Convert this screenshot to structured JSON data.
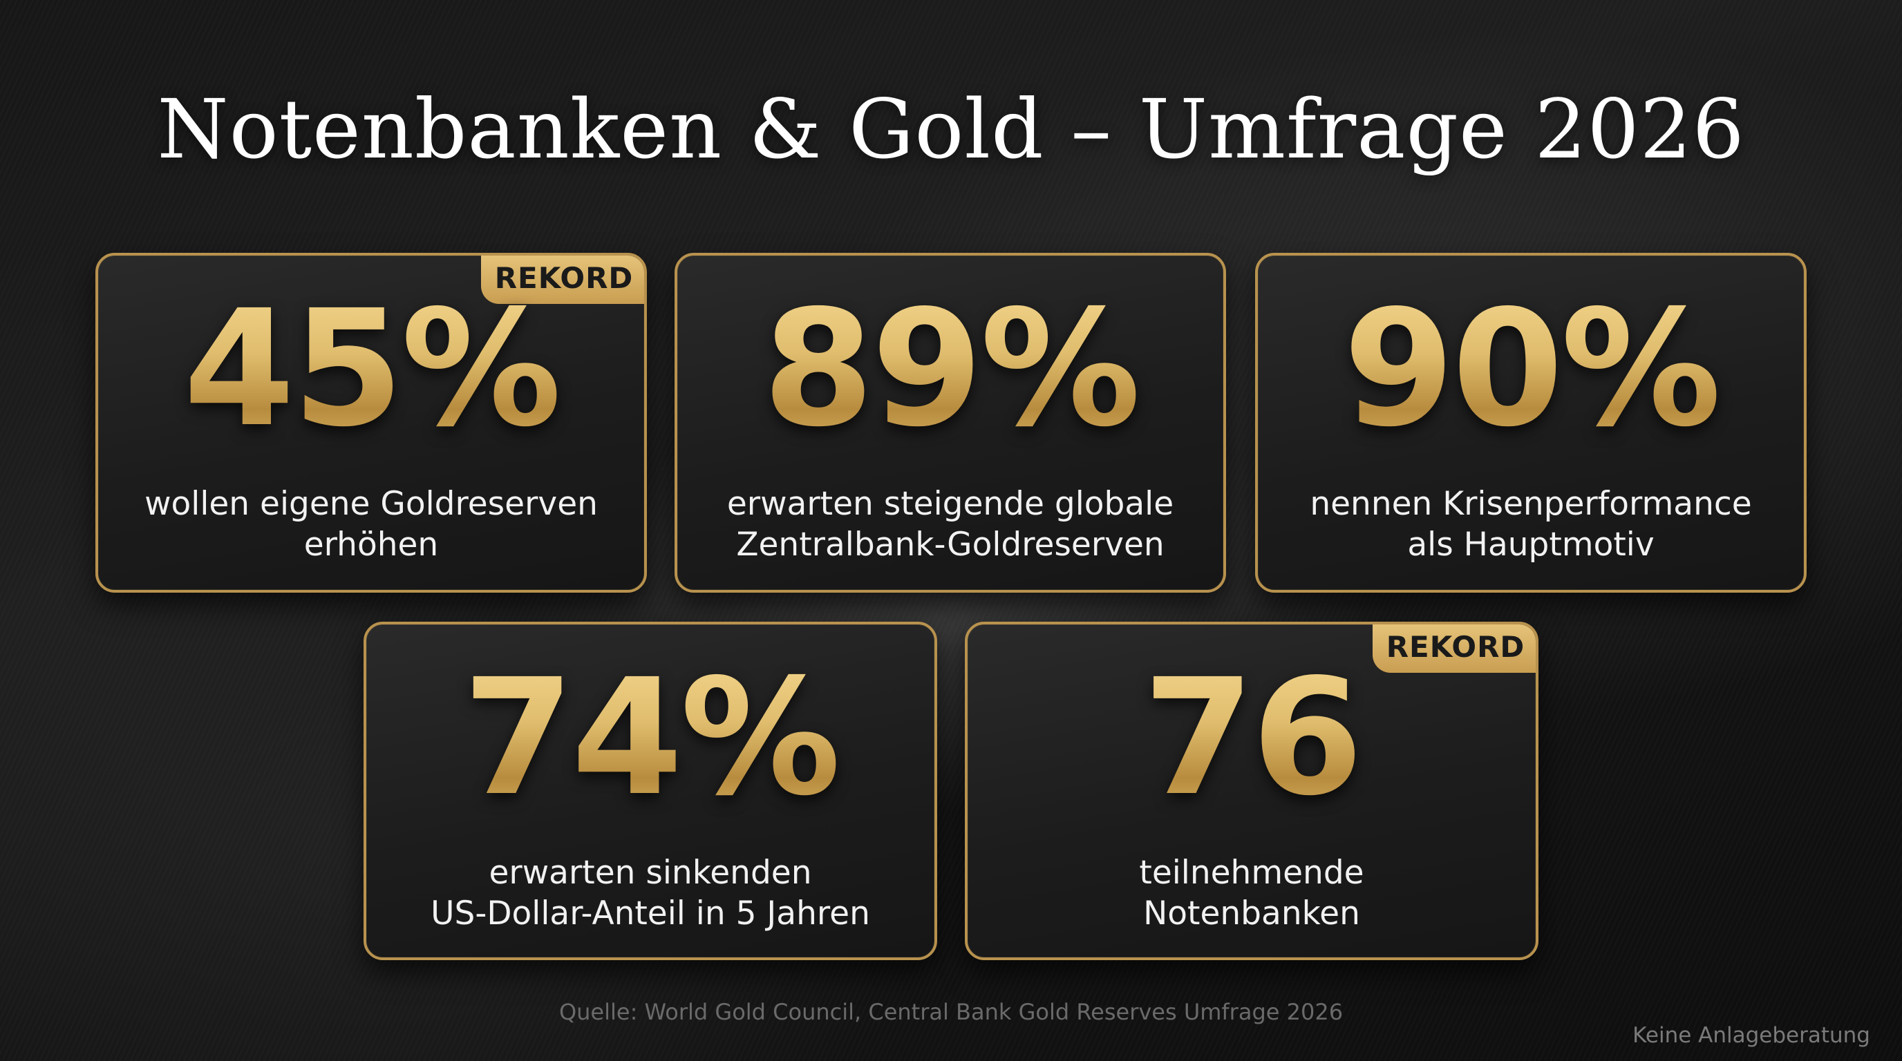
{
  "title": "Notenbanken & Gold – Umfrage 2026",
  "cards": [
    {
      "value": "45%",
      "label_line1": "wollen eigene Goldreserven",
      "label_line2": "erhöhen",
      "badge": "REKORD"
    },
    {
      "value": "89%",
      "label_line1": "erwarten steigende globale",
      "label_line2": "Zentralbank-Goldreserven"
    },
    {
      "value": "90%",
      "label_line1": "nennen Krisenperformance",
      "label_line2": "als Hauptmotiv"
    },
    {
      "value": "74%",
      "label_line1": "erwarten sinkenden",
      "label_line2": "US-Dollar-Anteil in 5 Jahren"
    },
    {
      "value": "76",
      "label_line1": "teilnehmende",
      "label_line2": "Notenbanken",
      "badge": "REKORD"
    }
  ],
  "source": "Quelle: World Gold Council, Central Bank Gold Reserves Umfrage 2026",
  "disclaimer": "Keine Anlageberatung",
  "colors": {
    "gold": "#d9b465",
    "gold_border": "#b8924e",
    "background": "#1a1a1a",
    "text": "#f2f2f2"
  }
}
